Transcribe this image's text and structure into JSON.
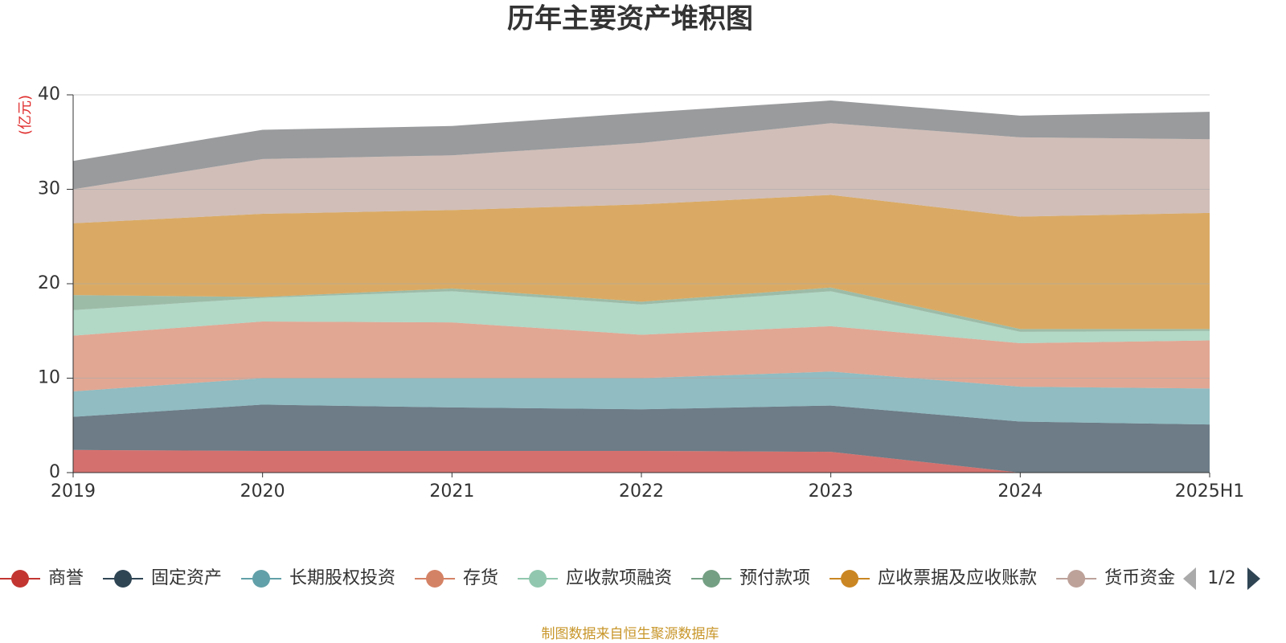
{
  "chart_data": {
    "type": "stacked-area",
    "title": "历年主要资产堆积图",
    "y_label": "(亿元)",
    "source": "制图数据来自恒生聚源数据库",
    "legend_page": "1/2",
    "categories": [
      "2019",
      "2020",
      "2021",
      "2022",
      "2023",
      "2024",
      "2025H1"
    ],
    "ylim": [
      0,
      40
    ],
    "yticks": [
      0,
      10,
      20,
      30,
      40
    ],
    "grid": true,
    "series": [
      {
        "name": "商誉",
        "color": "#c23531",
        "values": [
          2.4,
          2.3,
          2.3,
          2.3,
          2.2,
          0,
          0
        ]
      },
      {
        "name": "固定资产",
        "color": "#2f4554",
        "values": [
          3.5,
          4.9,
          4.6,
          4.4,
          4.9,
          5.4,
          5.1
        ]
      },
      {
        "name": "长期股权投资",
        "color": "#61a0a8",
        "values": [
          2.7,
          2.8,
          3.1,
          3.3,
          3.6,
          3.7,
          3.8
        ]
      },
      {
        "name": "存货",
        "color": "#d48265",
        "values": [
          5.9,
          6.0,
          5.9,
          4.6,
          4.8,
          4.6,
          5.1
        ]
      },
      {
        "name": "应收款项融资",
        "color": "#91c7ae",
        "values": [
          2.7,
          2.5,
          3.3,
          3.2,
          3.7,
          1.2,
          1.0
        ]
      },
      {
        "name": "预付款项",
        "color": "#749f83",
        "values": [
          1.6,
          0.1,
          0.3,
          0.3,
          0.4,
          0.3,
          0.2
        ]
      },
      {
        "name": "应收票据及应收账款",
        "color": "#ca8622",
        "values": [
          7.6,
          8.8,
          8.3,
          10.3,
          9.8,
          11.9,
          12.3
        ]
      },
      {
        "name": "货币资金",
        "color": "#bda29a",
        "values": [
          3.6,
          5.8,
          5.8,
          6.5,
          7.6,
          8.4,
          7.8
        ]
      },
      {
        "color": "#6e7074",
        "values": [
          3.0,
          3.1,
          3.1,
          3.2,
          2.4,
          2.3,
          2.9
        ]
      }
    ]
  }
}
